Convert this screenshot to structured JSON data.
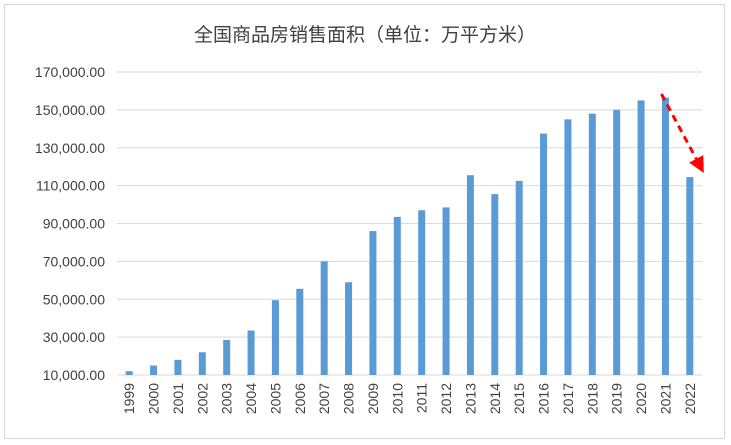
{
  "chart_data": {
    "type": "bar",
    "title": "全国商品房销售面积（单位：万平方米）",
    "xlabel": "",
    "ylabel": "",
    "categories": [
      "1999",
      "2000",
      "2001",
      "2002",
      "2003",
      "2004",
      "2005",
      "2006",
      "2007",
      "2008",
      "2009",
      "2010",
      "2011",
      "2012",
      "2013",
      "2014",
      "2015",
      "2016",
      "2017",
      "2018",
      "2019",
      "2020",
      "2021",
      "2022"
    ],
    "values": [
      12000,
      15000,
      18000,
      22000,
      28500,
      33500,
      49500,
      55500,
      70000,
      59000,
      86000,
      93500,
      97000,
      98500,
      115500,
      105500,
      112500,
      137500,
      145000,
      148000,
      150000,
      155000,
      156500,
      114500
    ],
    "yticks": [
      "10,000.00",
      "30,000.00",
      "50,000.00",
      "70,000.00",
      "90,000.00",
      "110,000.00",
      "130,000.00",
      "150,000.00",
      "170,000.00"
    ],
    "ylim": [
      10000,
      170000
    ],
    "grid": true,
    "legend": "none",
    "colors": {
      "bar": "#5b9bd5",
      "grid": "#d9d9d9",
      "arrow": "#ff0000"
    },
    "annotation": {
      "type": "dashed-arrow",
      "from_category": "2021",
      "to_category": "2022",
      "direction": "downward trend"
    }
  }
}
